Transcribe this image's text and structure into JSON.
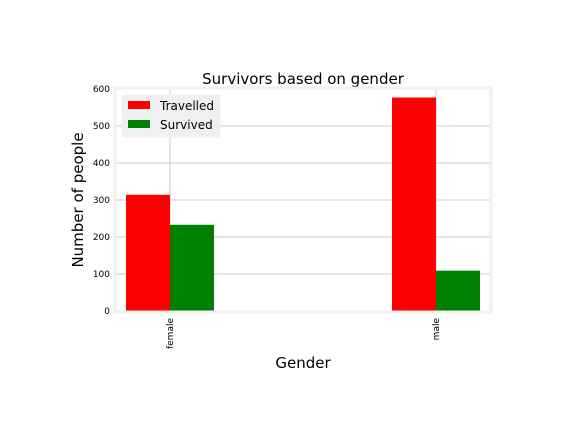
{
  "chart_data": {
    "type": "bar",
    "title": "Survivors based on gender",
    "xlabel": "Gender",
    "ylabel": "Number of people",
    "categories": [
      "female",
      "male"
    ],
    "series": [
      {
        "name": "Travelled",
        "values": [
          314,
          577
        ],
        "color": "#ff0000"
      },
      {
        "name": "Survived",
        "values": [
          233,
          109
        ],
        "color": "#008000"
      }
    ],
    "ylim": [
      0,
      600
    ],
    "yticks": [
      "0",
      "100",
      "200",
      "300",
      "400",
      "500",
      "600"
    ],
    "grid": true,
    "legend_position": "top-left",
    "background_color": "#ffffff",
    "grid_color": "#cbcbcb",
    "frame_color": "#f0f0f0"
  }
}
